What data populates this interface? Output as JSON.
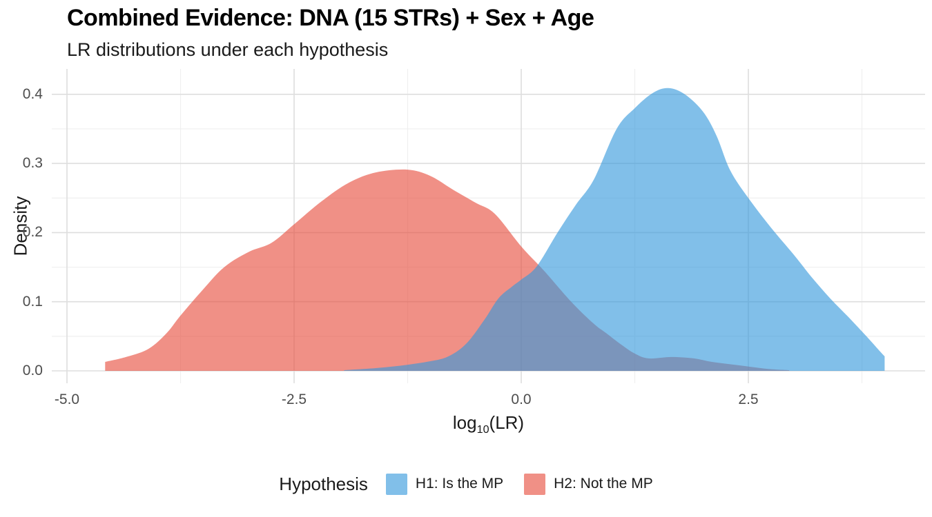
{
  "header": {
    "title": "Combined Evidence: DNA (15 STRs) + Sex + Age",
    "subtitle": "LR distributions under each hypothesis"
  },
  "colors": {
    "h1_fill": "#3498DB",
    "h2_fill": "#E74C3C",
    "fill_opacity": 0.62,
    "h1_legend_swatch": "#81BFE9",
    "h2_legend_swatch": "#F09086",
    "overlap_observed": "#8391B5",
    "grid_major": "#DEDEDE",
    "grid_minor": "#EFEFEF",
    "tick_text": "#4D4D4D",
    "text": "#1A1A1A"
  },
  "chart_data": {
    "type": "area",
    "subtype": "density",
    "title": "Combined Evidence: DNA (15 STRs) + Sex + Age",
    "subtitle": "LR distributions under each hypothesis",
    "xlabel": "log10(LR)",
    "xlabel_parts": {
      "base": "log",
      "sub": "10",
      "rest": "(LR)"
    },
    "ylabel": "Density",
    "xlim": [
      -5.17,
      4.45
    ],
    "ylim": [
      0,
      0.437
    ],
    "grid": "on",
    "x_ticks": [
      {
        "v": -5.0,
        "label": "-5.0"
      },
      {
        "v": -2.5,
        "label": "-2.5"
      },
      {
        "v": 0.0,
        "label": "0.0"
      },
      {
        "v": 2.5,
        "label": "2.5"
      }
    ],
    "x_minor": [
      -3.75,
      -1.25,
      1.25,
      3.75
    ],
    "y_ticks": [
      {
        "v": 0.0,
        "label": "0.0"
      },
      {
        "v": 0.1,
        "label": "0.1"
      },
      {
        "v": 0.2,
        "label": "0.2"
      },
      {
        "v": 0.3,
        "label": "0.3"
      },
      {
        "v": 0.4,
        "label": "0.4"
      }
    ],
    "y_minor": [
      0.05,
      0.15,
      0.25,
      0.35
    ],
    "legend": {
      "title": "Hypothesis",
      "position": "bottom",
      "entries": [
        {
          "id": "h1",
          "label": "H1: Is the MP",
          "color": "#81BFE9"
        },
        {
          "id": "h2",
          "label": "H2: Not the MP",
          "color": "#F09086"
        }
      ]
    },
    "series": [
      {
        "id": "h2",
        "name": "H2: Not the MP",
        "color_key": "h2_fill",
        "points": [
          [
            -4.58,
            0.013
          ],
          [
            -4.35,
            0.02
          ],
          [
            -4.1,
            0.032
          ],
          [
            -3.9,
            0.055
          ],
          [
            -3.75,
            0.08
          ],
          [
            -3.5,
            0.118
          ],
          [
            -3.27,
            0.15
          ],
          [
            -3.0,
            0.172
          ],
          [
            -2.75,
            0.185
          ],
          [
            -2.5,
            0.212
          ],
          [
            -2.2,
            0.245
          ],
          [
            -1.9,
            0.272
          ],
          [
            -1.6,
            0.287
          ],
          [
            -1.25,
            0.291
          ],
          [
            -1.0,
            0.282
          ],
          [
            -0.75,
            0.262
          ],
          [
            -0.5,
            0.243
          ],
          [
            -0.29,
            0.227
          ],
          [
            0.0,
            0.18
          ],
          [
            0.25,
            0.145
          ],
          [
            0.55,
            0.1
          ],
          [
            0.8,
            0.068
          ],
          [
            0.93,
            0.055
          ],
          [
            1.1,
            0.038
          ],
          [
            1.25,
            0.025
          ],
          [
            1.4,
            0.018
          ],
          [
            1.65,
            0.02
          ],
          [
            1.9,
            0.018
          ],
          [
            2.1,
            0.013
          ],
          [
            2.4,
            0.008
          ],
          [
            2.7,
            0.003
          ],
          [
            2.95,
            0.001
          ]
        ]
      },
      {
        "id": "h1",
        "name": "H1: Is the MP",
        "color_key": "h1_fill",
        "points": [
          [
            -1.95,
            0.001
          ],
          [
            -1.6,
            0.004
          ],
          [
            -1.3,
            0.008
          ],
          [
            -1.0,
            0.014
          ],
          [
            -0.8,
            0.021
          ],
          [
            -0.6,
            0.04
          ],
          [
            -0.4,
            0.075
          ],
          [
            -0.25,
            0.105
          ],
          [
            -0.1,
            0.122
          ],
          [
            0.0,
            0.132
          ],
          [
            0.17,
            0.151
          ],
          [
            0.4,
            0.2
          ],
          [
            0.6,
            0.24
          ],
          [
            0.8,
            0.277
          ],
          [
            1.05,
            0.35
          ],
          [
            1.25,
            0.38
          ],
          [
            1.45,
            0.402
          ],
          [
            1.62,
            0.409
          ],
          [
            1.8,
            0.4
          ],
          [
            2.0,
            0.375
          ],
          [
            2.15,
            0.34
          ],
          [
            2.3,
            0.29
          ],
          [
            2.5,
            0.25
          ],
          [
            2.75,
            0.207
          ],
          [
            3.0,
            0.168
          ],
          [
            3.2,
            0.135
          ],
          [
            3.4,
            0.105
          ],
          [
            3.6,
            0.078
          ],
          [
            3.8,
            0.05
          ],
          [
            3.95,
            0.028
          ],
          [
            4.0,
            0.021
          ]
        ]
      }
    ]
  }
}
